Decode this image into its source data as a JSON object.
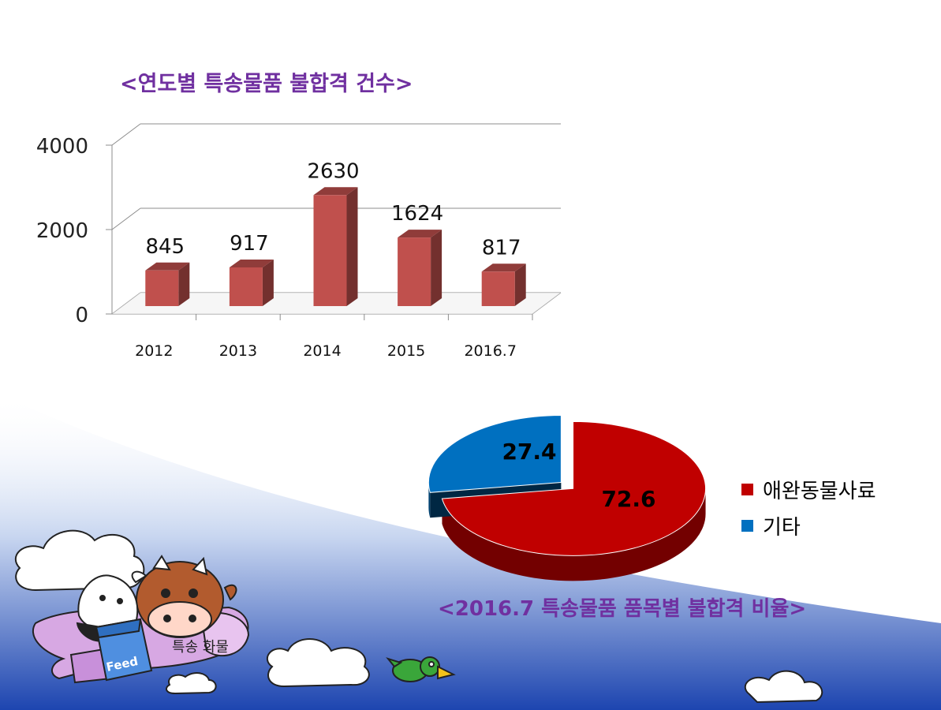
{
  "chart_data": [
    {
      "type": "bar",
      "title": "<연도별 특송물품 불합격 건수>",
      "categories": [
        "2012",
        "2013",
        "2014",
        "2015",
        "2016.7"
      ],
      "values": [
        845,
        917,
        2630,
        1624,
        817
      ],
      "data_labels": [
        "845",
        "917",
        "2630",
        "1624",
        "817"
      ],
      "ylim": [
        0,
        4000
      ],
      "yticks": [
        "0",
        "2000",
        "4000"
      ],
      "xlabel": "",
      "ylabel": "",
      "grid": true,
      "three_d": true,
      "bar_color": "#c0504d"
    },
    {
      "type": "pie",
      "title": "<2016.7  특송물품 품목별 불합격 비율>",
      "labels": [
        "애완동물사료",
        "기타"
      ],
      "values": [
        72.6,
        27.4
      ],
      "data_labels": [
        "72.6",
        "27.4"
      ],
      "colors": [
        "#c00000",
        "#0070c0"
      ],
      "legend": "right",
      "three_d": true,
      "exploded": true
    }
  ],
  "illustration": {
    "bag_label": "Feed",
    "banner_label": "특송 화물"
  },
  "colors": {
    "title": "#7030a0",
    "background_gradient": "#1f4fb4"
  }
}
